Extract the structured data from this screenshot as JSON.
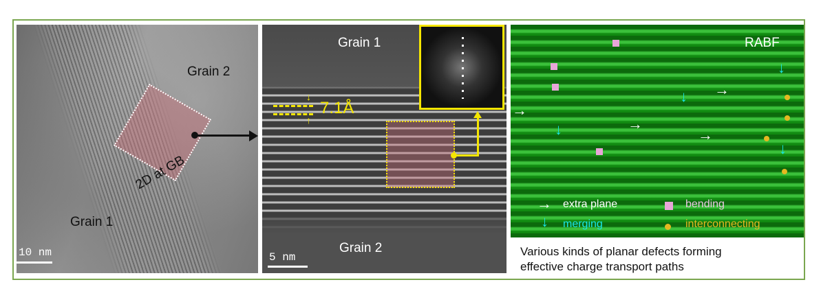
{
  "panel_left": {
    "grain_top": "Grain 2",
    "grain_bottom": "Grain 1",
    "roi_label": "2D at GB",
    "scale": "10 nm"
  },
  "panel_middle": {
    "grain_top": "Grain 1",
    "grain_bottom": "Grain 2",
    "spacing": "7.1Å",
    "scale": "5 nm"
  },
  "panel_right": {
    "title": "RABF",
    "legend": [
      {
        "label": "extra plane",
        "color": "#ffffff",
        "icon": "arrow-right"
      },
      {
        "label": "bending",
        "color": "#e8a6d8",
        "icon": "bent-marker"
      },
      {
        "label": "merging",
        "color": "#19e6e6",
        "icon": "arrow-down"
      },
      {
        "label": "interconnecting",
        "color": "#e6b820",
        "icon": "pin-marker"
      }
    ],
    "caption_line1": "Various kinds of planar defects forming",
    "caption_line2": "effective charge transport paths"
  },
  "colors": {
    "frame": "#7aa64f",
    "annotation_yellow": "#f5e600"
  }
}
